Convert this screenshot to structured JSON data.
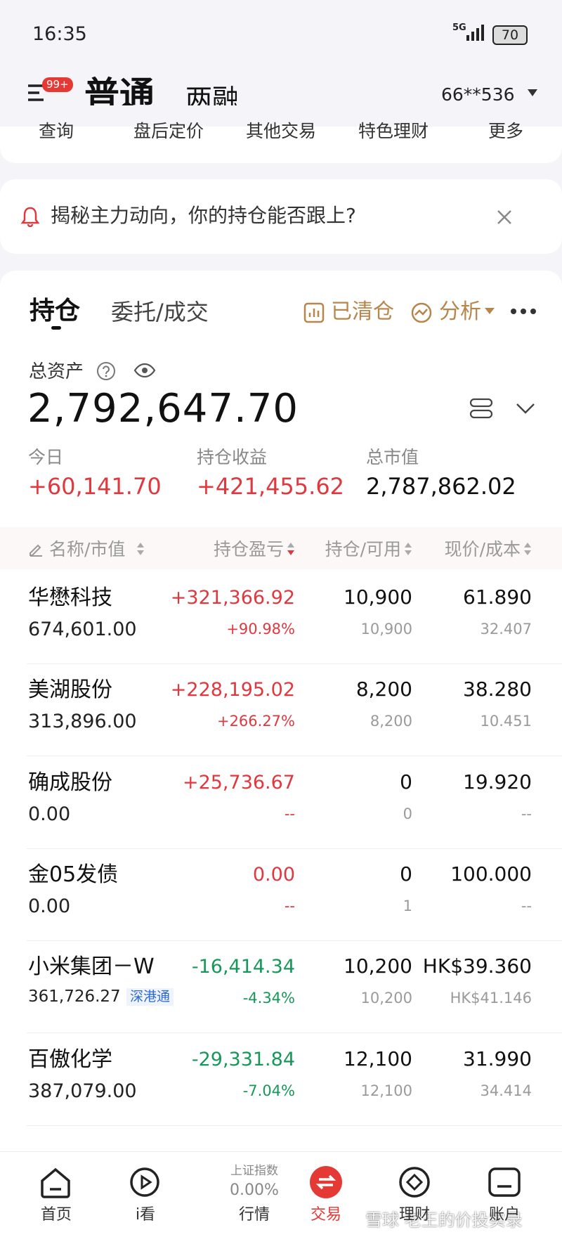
{
  "status_bar": {
    "time": "16:35",
    "network": "5G",
    "battery": "70"
  },
  "header": {
    "badge": "99+",
    "tabs": [
      "普通",
      "两融"
    ],
    "account": "66**536"
  },
  "menu": [
    "查询",
    "盘后定价",
    "其他交易",
    "特色理财",
    "更多"
  ],
  "banner": {
    "text": "揭秘主力动向，你的持仓能否跟上?"
  },
  "holdings": {
    "tabs": [
      "持仓",
      "委托/成交"
    ],
    "actions": [
      "已清仓",
      "分析"
    ],
    "total_assets_label": "总资产",
    "total_assets": "2,792,647.70",
    "stats": [
      {
        "label": "今日",
        "value": "+60,141.70"
      },
      {
        "label": "持仓收益",
        "value": "+421,455.62"
      },
      {
        "label": "总市值",
        "value": "2,787,862.02"
      }
    ],
    "columns": [
      "名称/市值",
      "持仓盈亏",
      "持仓/可用",
      "现价/成本"
    ],
    "rows": [
      {
        "name": "华懋科技",
        "market_value": "674,601.00",
        "pnl": "+321,366.92",
        "pnl_pct": "+90.98%",
        "position": "10,900",
        "available": "10,900",
        "price": "61.890",
        "cost": "32.407"
      },
      {
        "name": "美湖股份",
        "market_value": "313,896.00",
        "pnl": "+228,195.02",
        "pnl_pct": "+266.27%",
        "position": "8,200",
        "available": "8,200",
        "price": "38.280",
        "cost": "10.451"
      },
      {
        "name": "确成股份",
        "market_value": "0.00",
        "pnl": "+25,736.67",
        "pnl_pct": "--",
        "position": "0",
        "available": "0",
        "price": "19.920",
        "cost": "--"
      },
      {
        "name": "金05发债",
        "market_value": "0.00",
        "pnl": "0.00",
        "pnl_pct": "--",
        "position": "0",
        "available": "1",
        "price": "100.000",
        "cost": "--"
      },
      {
        "name": "小米集团－W",
        "market_value": "361,726.27",
        "tag": "深港通",
        "pnl": "-16,414.34",
        "pnl_pct": "-4.34%",
        "position": "10,200",
        "available": "10,200",
        "price": "HK$39.360",
        "cost": "HK$41.146"
      },
      {
        "name": "百傲化学",
        "market_value": "387,079.00",
        "pnl": "-29,331.84",
        "pnl_pct": "-7.04%",
        "position": "12,100",
        "available": "12,100",
        "price": "31.990",
        "cost": "34.414"
      }
    ]
  },
  "nav": {
    "items": [
      "首页",
      "i看",
      "行情",
      "交易",
      "理财",
      "账户"
    ],
    "index": {
      "name": "上证指数",
      "value": "0.00%"
    }
  },
  "watermark": "雪球 老王的价投实录"
}
